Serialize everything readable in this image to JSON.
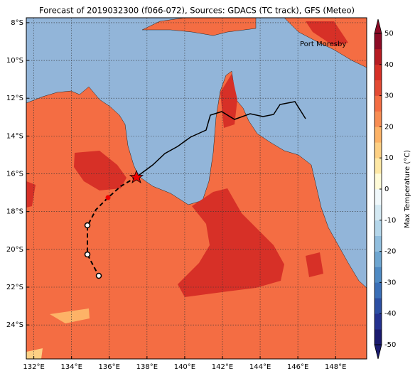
{
  "title": "Forecast of 2019032300 (f066-072), Sources: GDACS (TC track), GFS (Meteo)",
  "map": {
    "lonlim": [
      131.6,
      149.65
    ],
    "latlim": [
      -7.74,
      -25.8
    ],
    "lon_ticks": [
      {
        "value": 132,
        "label": "132°E"
      },
      {
        "value": 134,
        "label": "134°E"
      },
      {
        "value": 136,
        "label": "136°E"
      },
      {
        "value": 138,
        "label": "138°E"
      },
      {
        "value": 140,
        "label": "140°E"
      },
      {
        "value": 142,
        "label": "142°E"
      },
      {
        "value": 144,
        "label": "144°E"
      },
      {
        "value": 146,
        "label": "146°E"
      },
      {
        "value": 148,
        "label": "148°E"
      }
    ],
    "lat_ticks": [
      {
        "value": -8,
        "label": "8°S"
      },
      {
        "value": -10,
        "label": "10°S"
      },
      {
        "value": -12,
        "label": "12°S"
      },
      {
        "value": -14,
        "label": "14°S"
      },
      {
        "value": -16,
        "label": "16°S"
      },
      {
        "value": -18,
        "label": "18°S"
      },
      {
        "value": -20,
        "label": "20°S"
      },
      {
        "value": -22,
        "label": "22°S"
      },
      {
        "value": -24,
        "label": "24°S"
      }
    ],
    "grid": true,
    "place_label": "Port Moresby"
  },
  "colorbar": {
    "label": "Max Temperature (°C)",
    "clim": [
      -50,
      50
    ],
    "ticks": [
      50,
      40,
      30,
      20,
      10,
      0,
      -10,
      -20,
      -30,
      -40,
      -50
    ],
    "colors": [
      "#1a1a6e",
      "#24318f",
      "#2c4fa3",
      "#3a6fb7",
      "#4f8bc4",
      "#6ea6d1",
      "#91bfdf",
      "#b4d6ea",
      "#d4e9f3",
      "#f0f8fb",
      "#fffbd8",
      "#fee8a5",
      "#fdd084",
      "#fdb367",
      "#f88d52",
      "#f46d43",
      "#e34a33",
      "#d73027",
      "#b71c23",
      "#8d0b26"
    ]
  }
}
